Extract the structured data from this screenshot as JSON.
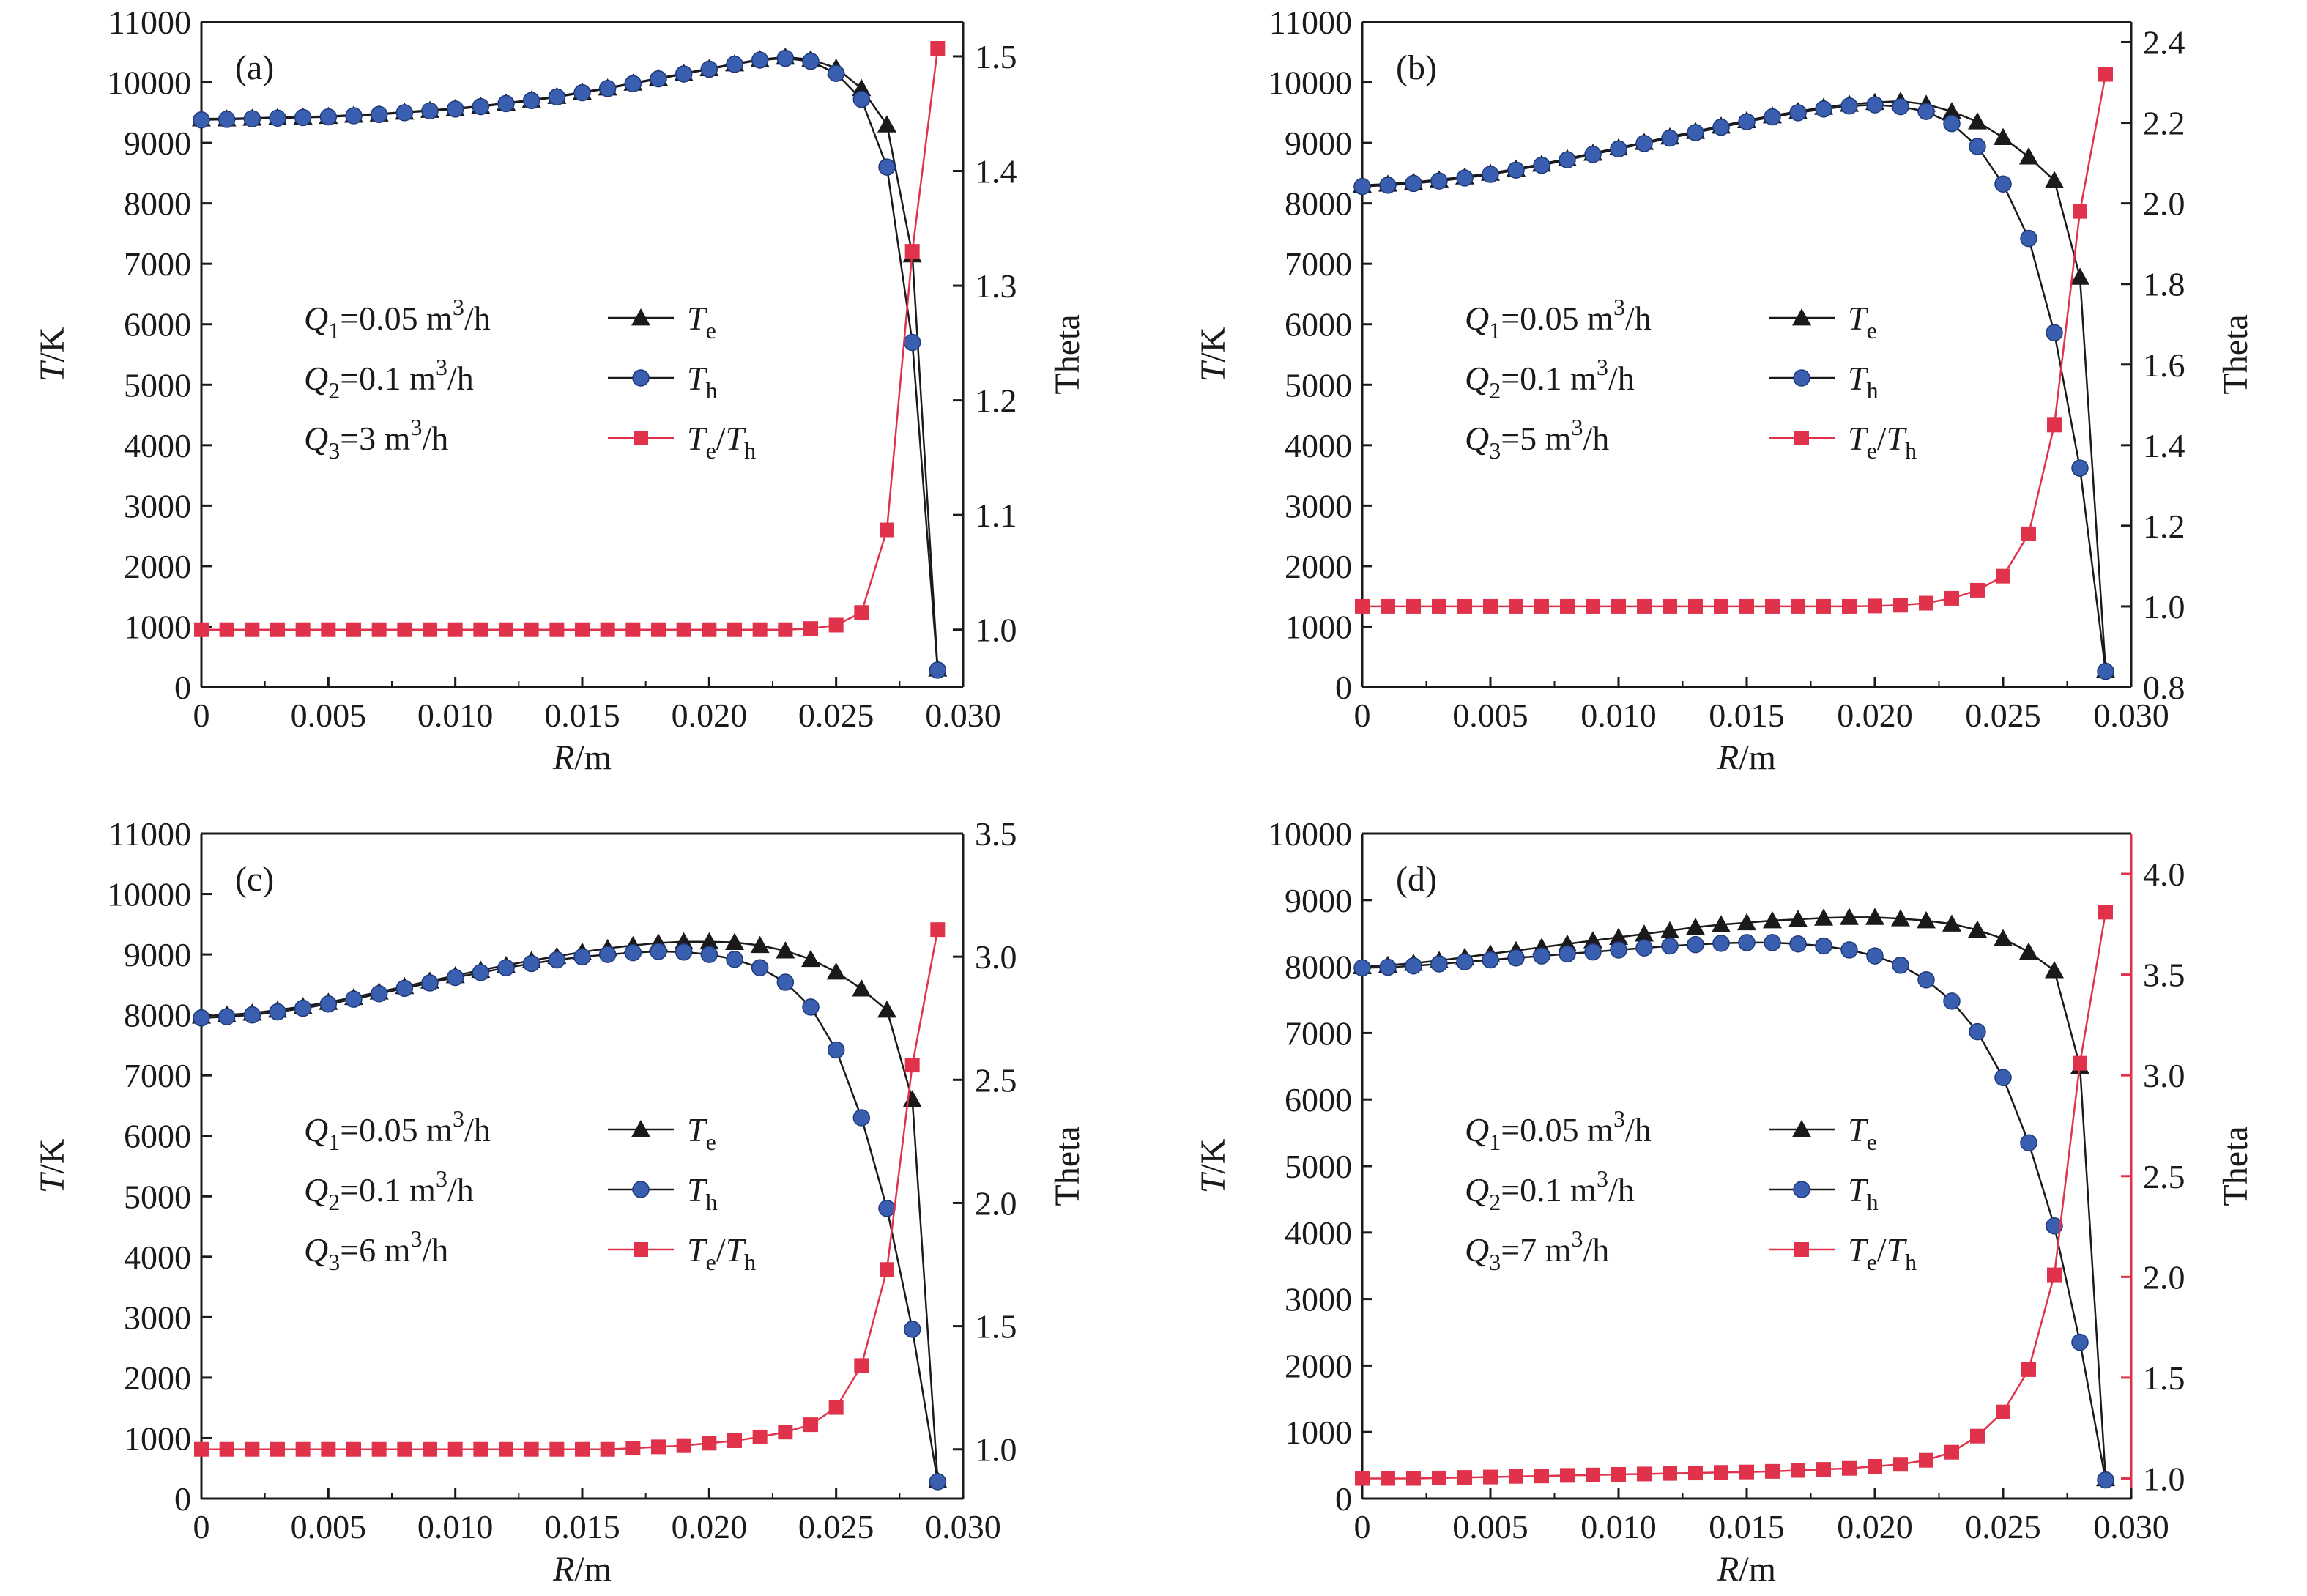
{
  "colors": {
    "te": "#1a1a1a",
    "th": "#3a5fb0",
    "ratio": "#e0334b",
    "axis": "#1a1a1a"
  },
  "icons": {
    "te": "triangle-marker",
    "th": "circle-marker",
    "ratio": "square-marker"
  },
  "chart_data": [
    {
      "type": "line",
      "panel_label": "(a)",
      "xlabel_var": "R",
      "xlabel_unit": "/m",
      "ylabel_var": "T",
      "ylabel_unit": "/K",
      "y2label": "Theta",
      "xlim": [
        0,
        0.03
      ],
      "ylim": [
        0,
        11000
      ],
      "y2lim": [
        0.95,
        1.53
      ],
      "x_ticks": [
        "0",
        "0.005",
        "0.010",
        "0.015",
        "0.020",
        "0.025",
        "0.030"
      ],
      "y_ticks": [
        "0",
        "1000",
        "2000",
        "3000",
        "4000",
        "5000",
        "6000",
        "7000",
        "8000",
        "9000",
        "10000",
        "11000"
      ],
      "y2_ticks": [
        "1.0",
        "1.1",
        "1.2",
        "1.3",
        "1.4",
        "1.5"
      ],
      "right_axis_colored": false,
      "conditions": [
        {
          "var": "Q",
          "sub": "1",
          "text": "=0.05 m",
          "sup": "3",
          "unit_tail": "/h"
        },
        {
          "var": "Q",
          "sub": "2",
          "text": "=0.1 m",
          "sup": "3",
          "unit_tail": "/h"
        },
        {
          "var": "Q",
          "sub": "3",
          "text": "=3 m",
          "sup": "3",
          "unit_tail": "/h"
        }
      ],
      "legend": [
        {
          "base": "T",
          "sub": "e",
          "slash": "",
          "base2": "",
          "sub2": ""
        },
        {
          "base": "T",
          "sub": "h",
          "slash": "",
          "base2": "",
          "sub2": ""
        },
        {
          "base": "T",
          "sub": "e",
          "slash": "/",
          "base2": "T",
          "sub2": "h"
        }
      ],
      "x": [
        0,
        0.001,
        0.002,
        0.003,
        0.004,
        0.005,
        0.006,
        0.007,
        0.008,
        0.009,
        0.01,
        0.011,
        0.012,
        0.013,
        0.014,
        0.015,
        0.016,
        0.017,
        0.018,
        0.019,
        0.02,
        0.021,
        0.022,
        0.023,
        0.024,
        0.025,
        0.026,
        0.027,
        0.028,
        0.029
      ],
      "series": [
        {
          "name": "Te",
          "axis": "left",
          "values": [
            9400,
            9400,
            9410,
            9420,
            9430,
            9440,
            9460,
            9480,
            9510,
            9540,
            9570,
            9610,
            9660,
            9710,
            9770,
            9840,
            9910,
            9990,
            10070,
            10150,
            10230,
            10310,
            10380,
            10420,
            10380,
            10240,
            9900,
            9300,
            7150,
            300
          ]
        },
        {
          "name": "Th",
          "axis": "left",
          "values": [
            9380,
            9390,
            9400,
            9410,
            9420,
            9430,
            9450,
            9470,
            9500,
            9530,
            9560,
            9600,
            9650,
            9700,
            9760,
            9830,
            9900,
            9980,
            10060,
            10140,
            10220,
            10300,
            10370,
            10400,
            10350,
            10150,
            9720,
            8600,
            5700,
            280
          ]
        },
        {
          "name": "Te/Th",
          "axis": "right",
          "values": [
            1.0,
            1.0,
            1.0,
            1.0,
            1.0,
            1.0,
            1.0,
            1.0,
            1.0,
            1.0,
            1.0,
            1.0,
            1.0,
            1.0,
            1.0,
            1.0,
            1.0,
            1.0,
            1.0,
            1.0,
            1.0,
            1.0,
            1.0,
            1.0,
            1.001,
            1.004,
            1.015,
            1.087,
            1.33,
            1.507
          ]
        }
      ]
    },
    {
      "type": "line",
      "panel_label": "(b)",
      "xlabel_var": "R",
      "xlabel_unit": "/m",
      "ylabel_var": "T",
      "ylabel_unit": "/K",
      "y2label": "Theta",
      "xlim": [
        0,
        0.03
      ],
      "ylim": [
        0,
        11000
      ],
      "y2lim": [
        0.8,
        2.45
      ],
      "x_ticks": [
        "0",
        "0.005",
        "0.010",
        "0.015",
        "0.020",
        "0.025",
        "0.030"
      ],
      "y_ticks": [
        "0",
        "1000",
        "2000",
        "3000",
        "4000",
        "5000",
        "6000",
        "7000",
        "8000",
        "9000",
        "10000",
        "11000"
      ],
      "y2_ticks": [
        "0.8",
        "1.0",
        "1.2",
        "1.4",
        "1.6",
        "1.8",
        "2.0",
        "2.2",
        "2.4"
      ],
      "right_axis_colored": false,
      "conditions": [
        {
          "var": "Q",
          "sub": "1",
          "text": "=0.05 m",
          "sup": "3",
          "unit_tail": "/h"
        },
        {
          "var": "Q",
          "sub": "2",
          "text": "=0.1 m",
          "sup": "3",
          "unit_tail": "/h"
        },
        {
          "var": "Q",
          "sub": "3",
          "text": "=5 m",
          "sup": "3",
          "unit_tail": "/h"
        }
      ],
      "legend": [
        {
          "base": "T",
          "sub": "e",
          "slash": "",
          "base2": "",
          "sub2": ""
        },
        {
          "base": "T",
          "sub": "h",
          "slash": "",
          "base2": "",
          "sub2": ""
        },
        {
          "base": "T",
          "sub": "e",
          "slash": "/",
          "base2": "T",
          "sub2": "h"
        }
      ],
      "x": [
        0,
        0.001,
        0.002,
        0.003,
        0.004,
        0.005,
        0.006,
        0.007,
        0.008,
        0.009,
        0.01,
        0.011,
        0.012,
        0.013,
        0.014,
        0.015,
        0.016,
        0.017,
        0.018,
        0.019,
        0.02,
        0.021,
        0.022,
        0.023,
        0.024,
        0.025,
        0.026,
        0.027,
        0.028,
        0.029
      ],
      "series": [
        {
          "name": "Te",
          "axis": "left",
          "values": [
            8300,
            8320,
            8350,
            8390,
            8440,
            8500,
            8570,
            8650,
            8740,
            8830,
            8920,
            9010,
            9100,
            9190,
            9280,
            9370,
            9450,
            9520,
            9590,
            9640,
            9670,
            9690,
            9640,
            9520,
            9350,
            9090,
            8770,
            8380,
            6780,
            280
          ]
        },
        {
          "name": "Th",
          "axis": "left",
          "values": [
            8280,
            8300,
            8330,
            8370,
            8420,
            8480,
            8550,
            8630,
            8720,
            8810,
            8900,
            8990,
            9080,
            9170,
            9260,
            9350,
            9430,
            9500,
            9560,
            9610,
            9630,
            9600,
            9520,
            9320,
            8940,
            8320,
            7420,
            5860,
            3620,
            260
          ]
        },
        {
          "name": "Te/Th",
          "axis": "right",
          "values": [
            1.0,
            1.0,
            1.0,
            1.0,
            1.0,
            1.0,
            1.0,
            1.0,
            1.0,
            1.0,
            1.0,
            1.0,
            1.0,
            1.0,
            1.0,
            1.0,
            1.0,
            1.0,
            1.0,
            1.0,
            1.001,
            1.003,
            1.008,
            1.02,
            1.04,
            1.075,
            1.18,
            1.45,
            1.98,
            2.32
          ]
        }
      ]
    },
    {
      "type": "line",
      "panel_label": "(c)",
      "xlabel_var": "R",
      "xlabel_unit": "/m",
      "ylabel_var": "T",
      "ylabel_unit": "/K",
      "y2label": "Theta",
      "xlim": [
        0,
        0.03
      ],
      "ylim": [
        0,
        11000
      ],
      "y2lim": [
        0.8,
        3.5
      ],
      "x_ticks": [
        "0",
        "0.005",
        "0.010",
        "0.015",
        "0.020",
        "0.025",
        "0.030"
      ],
      "y_ticks": [
        "0",
        "1000",
        "2000",
        "3000",
        "4000",
        "5000",
        "6000",
        "7000",
        "8000",
        "9000",
        "10000",
        "11000"
      ],
      "y2_ticks": [
        "1.0",
        "1.5",
        "2.0",
        "2.5",
        "3.0",
        "3.5"
      ],
      "right_axis_colored": false,
      "conditions": [
        {
          "var": "Q",
          "sub": "1",
          "text": "=0.05 m",
          "sup": "3",
          "unit_tail": "/h"
        },
        {
          "var": "Q",
          "sub": "2",
          "text": "=0.1 m",
          "sup": "3",
          "unit_tail": "/h"
        },
        {
          "var": "Q",
          "sub": "3",
          "text": "=6 m",
          "sup": "3",
          "unit_tail": "/h"
        }
      ],
      "legend": [
        {
          "base": "T",
          "sub": "e",
          "slash": "",
          "base2": "",
          "sub2": ""
        },
        {
          "base": "T",
          "sub": "h",
          "slash": "",
          "base2": "",
          "sub2": ""
        },
        {
          "base": "T",
          "sub": "e",
          "slash": "/",
          "base2": "T",
          "sub2": "h"
        }
      ],
      "x": [
        0,
        0.001,
        0.002,
        0.003,
        0.004,
        0.005,
        0.006,
        0.007,
        0.008,
        0.009,
        0.01,
        0.011,
        0.012,
        0.013,
        0.014,
        0.015,
        0.016,
        0.017,
        0.018,
        0.019,
        0.02,
        0.021,
        0.022,
        0.023,
        0.024,
        0.025,
        0.026,
        0.027,
        0.028,
        0.029
      ],
      "series": [
        {
          "name": "Te",
          "axis": "left",
          "values": [
            7980,
            8000,
            8030,
            8080,
            8140,
            8210,
            8290,
            8380,
            8470,
            8560,
            8650,
            8740,
            8820,
            8900,
            8970,
            9040,
            9100,
            9150,
            9190,
            9210,
            9210,
            9200,
            9150,
            9060,
            8920,
            8710,
            8430,
            8080,
            6600,
            300
          ]
        },
        {
          "name": "Th",
          "axis": "left",
          "values": [
            7950,
            7970,
            8000,
            8050,
            8110,
            8180,
            8260,
            8350,
            8440,
            8530,
            8620,
            8700,
            8780,
            8850,
            8910,
            8960,
            9000,
            9030,
            9050,
            9040,
            9000,
            8920,
            8780,
            8540,
            8130,
            7420,
            6300,
            4800,
            2800,
            280
          ]
        },
        {
          "name": "Te/Th",
          "axis": "right",
          "values": [
            1.0,
            1.0,
            1.0,
            1.0,
            1.0,
            1.0,
            1.0,
            1.0,
            1.0,
            1.0,
            1.0,
            1.0,
            1.0,
            1.0,
            1.0,
            1.0,
            1.0,
            1.005,
            1.01,
            1.015,
            1.025,
            1.035,
            1.05,
            1.07,
            1.1,
            1.17,
            1.34,
            1.73,
            2.56,
            3.11
          ]
        }
      ]
    },
    {
      "type": "line",
      "panel_label": "(d)",
      "xlabel_var": "R",
      "xlabel_unit": "/m",
      "ylabel_var": "T",
      "ylabel_unit": "/K",
      "y2label": "Theta",
      "xlim": [
        0,
        0.03
      ],
      "ylim": [
        0,
        10000
      ],
      "y2lim": [
        0.9,
        4.2
      ],
      "x_ticks": [
        "0",
        "0.005",
        "0.010",
        "0.015",
        "0.020",
        "0.025",
        "0.030"
      ],
      "y_ticks": [
        "0",
        "1000",
        "2000",
        "3000",
        "4000",
        "5000",
        "6000",
        "7000",
        "8000",
        "9000",
        "10000"
      ],
      "y2_ticks": [
        "1.0",
        "1.5",
        "2.0",
        "2.5",
        "3.0",
        "3.5",
        "4.0"
      ],
      "right_axis_colored": true,
      "conditions": [
        {
          "var": "Q",
          "sub": "1",
          "text": "=0.05 m",
          "sup": "3",
          "unit_tail": "/h"
        },
        {
          "var": "Q",
          "sub": "2",
          "text": "=0.1 m",
          "sup": "3",
          "unit_tail": "/h"
        },
        {
          "var": "Q",
          "sub": "3",
          "text": "=7 m",
          "sup": "3",
          "unit_tail": "/h"
        }
      ],
      "legend": [
        {
          "base": "T",
          "sub": "e",
          "slash": "",
          "base2": "",
          "sub2": ""
        },
        {
          "base": "T",
          "sub": "h",
          "slash": "",
          "base2": "",
          "sub2": ""
        },
        {
          "base": "T",
          "sub": "e",
          "slash": "/",
          "base2": "T",
          "sub2": "h"
        }
      ],
      "x": [
        0,
        0.001,
        0.002,
        0.003,
        0.004,
        0.005,
        0.006,
        0.007,
        0.008,
        0.009,
        0.01,
        0.011,
        0.012,
        0.013,
        0.014,
        0.015,
        0.016,
        0.017,
        0.018,
        0.019,
        0.02,
        0.021,
        0.022,
        0.023,
        0.024,
        0.025,
        0.026,
        0.027,
        0.028,
        0.029
      ],
      "series": [
        {
          "name": "Te",
          "axis": "left",
          "values": [
            8000,
            8020,
            8050,
            8090,
            8140,
            8190,
            8240,
            8290,
            8340,
            8390,
            8440,
            8490,
            8540,
            8590,
            8630,
            8660,
            8690,
            8710,
            8730,
            8740,
            8740,
            8720,
            8690,
            8640,
            8550,
            8420,
            8220,
            7940,
            6500,
            300
          ]
        },
        {
          "name": "Th",
          "axis": "left",
          "values": [
            7980,
            7990,
            8010,
            8040,
            8070,
            8100,
            8130,
            8160,
            8190,
            8220,
            8250,
            8280,
            8310,
            8330,
            8350,
            8360,
            8360,
            8340,
            8310,
            8250,
            8160,
            8020,
            7800,
            7480,
            7020,
            6330,
            5350,
            4100,
            2350,
            280
          ]
        },
        {
          "name": "Te/Th",
          "axis": "right",
          "values": [
            1.0,
            1.0,
            1.0,
            1.002,
            1.005,
            1.007,
            1.01,
            1.012,
            1.015,
            1.017,
            1.02,
            1.022,
            1.025,
            1.027,
            1.03,
            1.032,
            1.035,
            1.04,
            1.045,
            1.05,
            1.06,
            1.07,
            1.09,
            1.13,
            1.21,
            1.33,
            1.54,
            2.01,
            3.06,
            3.81
          ]
        }
      ]
    }
  ]
}
